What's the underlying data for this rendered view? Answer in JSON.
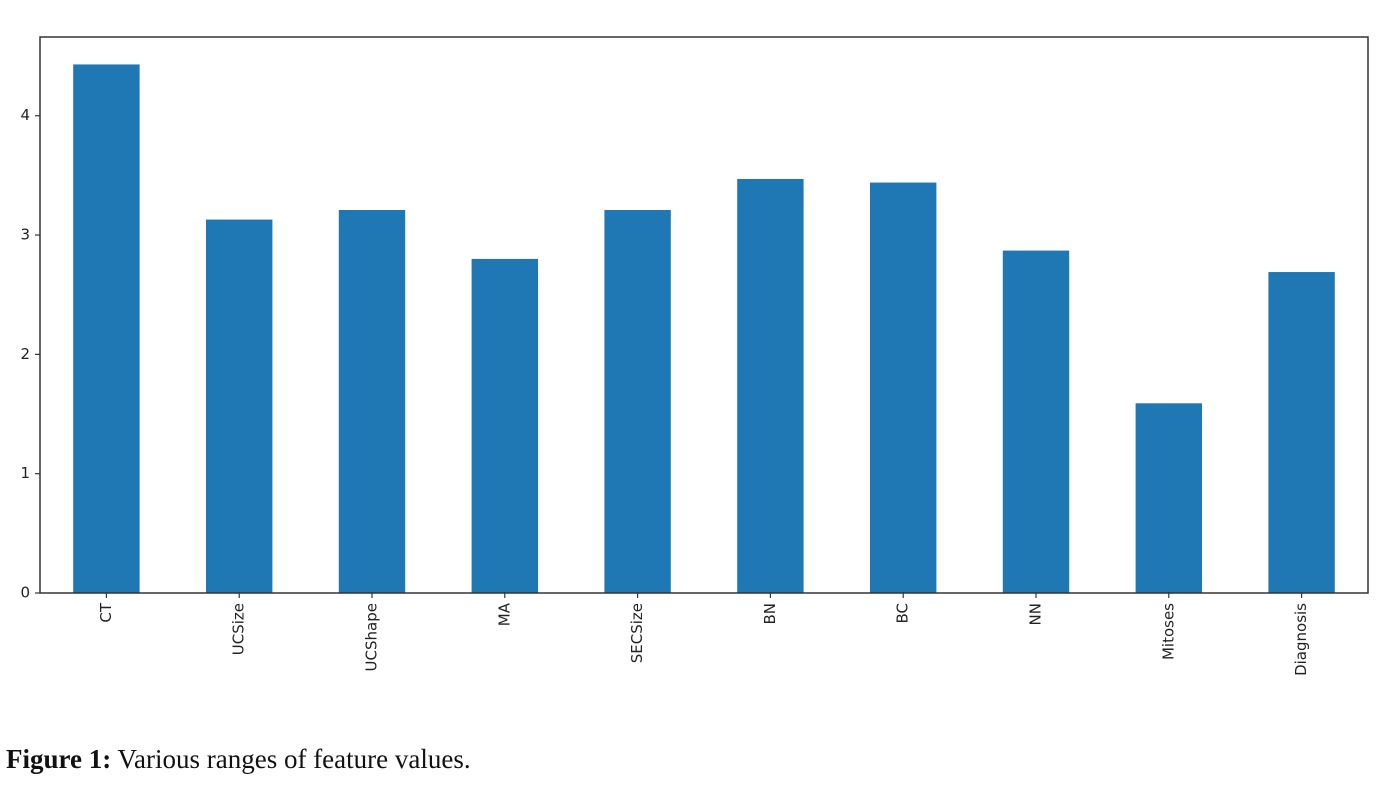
{
  "chart_data": {
    "type": "bar",
    "categories": [
      "CT",
      "UCSize",
      "UCShape",
      "MA",
      "SECSize",
      "BN",
      "BC",
      "NN",
      "Mitoses",
      "Diagnosis"
    ],
    "values": [
      4.43,
      3.13,
      3.21,
      2.8,
      3.21,
      3.47,
      3.44,
      2.87,
      1.59,
      2.69
    ],
    "yticks": [
      "0",
      "1",
      "2",
      "3",
      "4"
    ],
    "ylim": [
      0,
      4.66
    ],
    "bar_color": "#1f77b4",
    "grid": false,
    "legend": "none"
  },
  "caption": {
    "label": "Figure 1:",
    "text": " Various ranges of feature values."
  }
}
